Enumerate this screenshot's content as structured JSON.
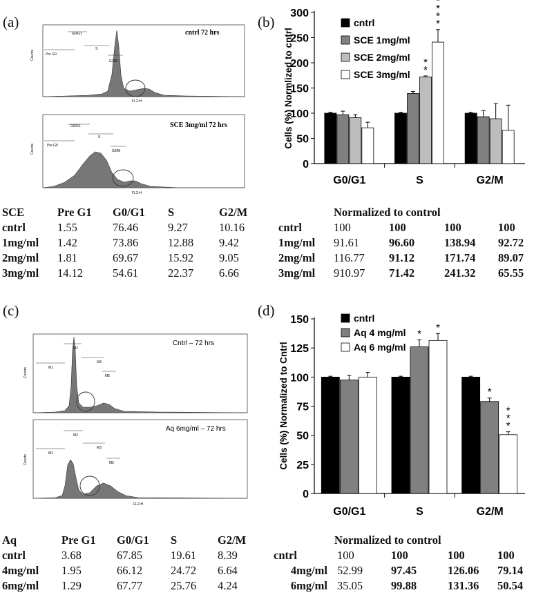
{
  "panel_labels": {
    "a": "(a)",
    "b": "(b)",
    "c": "(c)",
    "d": "(d)"
  },
  "histograms": {
    "a_top": {
      "title": "cntrl 72 hrs",
      "gates": [
        "Pre G0",
        "G0/G1",
        "S",
        "G2/M"
      ],
      "xlabel": "FL2-H",
      "ylabel": "Counts"
    },
    "a_bottom": {
      "title": "SCE 3mg/ml 72 hrs",
      "gates": [
        "Pre G0",
        "G0/G1",
        "S",
        "G2/M"
      ],
      "xlabel": "FL2-H",
      "ylabel": "Counts"
    },
    "c_top": {
      "title": "Cntrl – 72 hrs",
      "gates": [
        "M1",
        "M2",
        "M3",
        "M5"
      ],
      "xlabel": "FL2-H",
      "ylabel": "Counts"
    },
    "c_bottom": {
      "title": "Aq 6mg/ml – 72 hrs",
      "gates": [
        "M1",
        "M2",
        "M3",
        "M5"
      ],
      "xlabel": "FL2-H",
      "ylabel": "Counts"
    }
  },
  "chart_data": [
    {
      "type": "bar",
      "panel": "(b)",
      "categories": [
        "G0/G1",
        "S",
        "G2/M"
      ],
      "ylabel": "Cells (%) Normlized to cntrl",
      "ylim": [
        0,
        300
      ],
      "yticks": [
        0,
        50,
        100,
        150,
        200,
        250,
        300
      ],
      "legend": "top-left",
      "series": [
        {
          "name": "cntrl",
          "color": "#000000",
          "values": [
            100,
            100,
            100
          ],
          "errors": [
            2,
            2,
            2
          ],
          "marks": [
            "",
            "",
            ""
          ]
        },
        {
          "name": "SCE 1mg/ml",
          "color": "#808080",
          "values": [
            97,
            139,
            93
          ],
          "errors": [
            7,
            4,
            12
          ],
          "marks": [
            "",
            "",
            ""
          ]
        },
        {
          "name": "SCE 2mg/ml",
          "color": "#bdbdbd",
          "values": [
            91,
            172,
            89
          ],
          "errors": [
            6,
            2,
            30
          ],
          "marks": [
            "",
            "* *",
            ""
          ]
        },
        {
          "name": "SCE 3mg/ml",
          "color": "#ffffff",
          "values": [
            71,
            241,
            66
          ],
          "errors": [
            11,
            25,
            50
          ],
          "marks": [
            "",
            "* * * *",
            ""
          ]
        }
      ]
    },
    {
      "type": "bar",
      "panel": "(d)",
      "categories": [
        "G0/G1",
        "S",
        "G2/M"
      ],
      "ylabel": "Cells (%) Normalized to Cntrl",
      "ylim": [
        0,
        150
      ],
      "yticks": [
        0,
        25,
        50,
        75,
        100,
        125,
        150
      ],
      "legend": "top-left",
      "series": [
        {
          "name": "cntrl",
          "color": "#000000",
          "values": [
            100,
            100,
            100
          ],
          "errors": [
            0.7,
            0.7,
            0.7
          ],
          "marks": [
            "",
            "",
            ""
          ]
        },
        {
          "name": "Aq 4 mg/ml",
          "color": "#808080",
          "values": [
            97.5,
            126,
            79
          ],
          "errors": [
            4,
            6,
            3
          ],
          "marks": [
            "",
            "*",
            "*"
          ]
        },
        {
          "name": "Aq 6 mg/ml",
          "color": "#ffffff",
          "values": [
            100,
            131.4,
            50.5
          ],
          "errors": [
            4,
            6,
            2.5
          ],
          "marks": [
            "",
            "*",
            "* * *"
          ]
        }
      ]
    }
  ],
  "table_sce": {
    "header": [
      "SCE",
      "Pre G1",
      "G0/G1",
      "S",
      "G2/M"
    ],
    "rows": [
      [
        "cntrl",
        "1.55",
        "76.46",
        "9.27",
        "10.16"
      ],
      [
        "1mg/ml",
        "1.42",
        "73.86",
        "12.88",
        "9.42"
      ],
      [
        "2mg/ml",
        "1.81",
        "69.67",
        "15.92",
        "9.05"
      ],
      [
        "3mg/ml",
        "14.12",
        "54.61",
        "22.37",
        "6.66"
      ]
    ]
  },
  "table_sce_norm": {
    "header": "Normalized to control",
    "rows": [
      [
        "cntrl",
        "100",
        "100",
        "100",
        "100"
      ],
      [
        "1mg/ml",
        "91.61",
        "96.60",
        "138.94",
        "92.72"
      ],
      [
        "2mg/ml",
        "116.77",
        "91.12",
        "171.74",
        "89.07"
      ],
      [
        "3mg/ml",
        "910.97",
        "71.42",
        "241.32",
        "65.55"
      ]
    ]
  },
  "table_aq": {
    "header": [
      "Aq",
      "Pre G1",
      "G0/G1",
      "S",
      "G2/M"
    ],
    "rows": [
      [
        "cntrl",
        "3.68",
        "67.85",
        "19.61",
        "8.39"
      ],
      [
        "4mg/ml",
        "1.95",
        "66.12",
        "24.72",
        "6.64"
      ],
      [
        "6mg/ml",
        "1.29",
        "67.77",
        "25.76",
        "4.24"
      ]
    ]
  },
  "table_aq_norm": {
    "header": "Normalized to control",
    "rows": [
      [
        "cntrl",
        "100",
        "100",
        "100",
        "100"
      ],
      [
        "4mg/ml",
        "52.99",
        "97.45",
        "126.06",
        "79.14"
      ],
      [
        "6mg/ml",
        "35.05",
        "99.88",
        "131.36",
        "50.54"
      ]
    ]
  }
}
